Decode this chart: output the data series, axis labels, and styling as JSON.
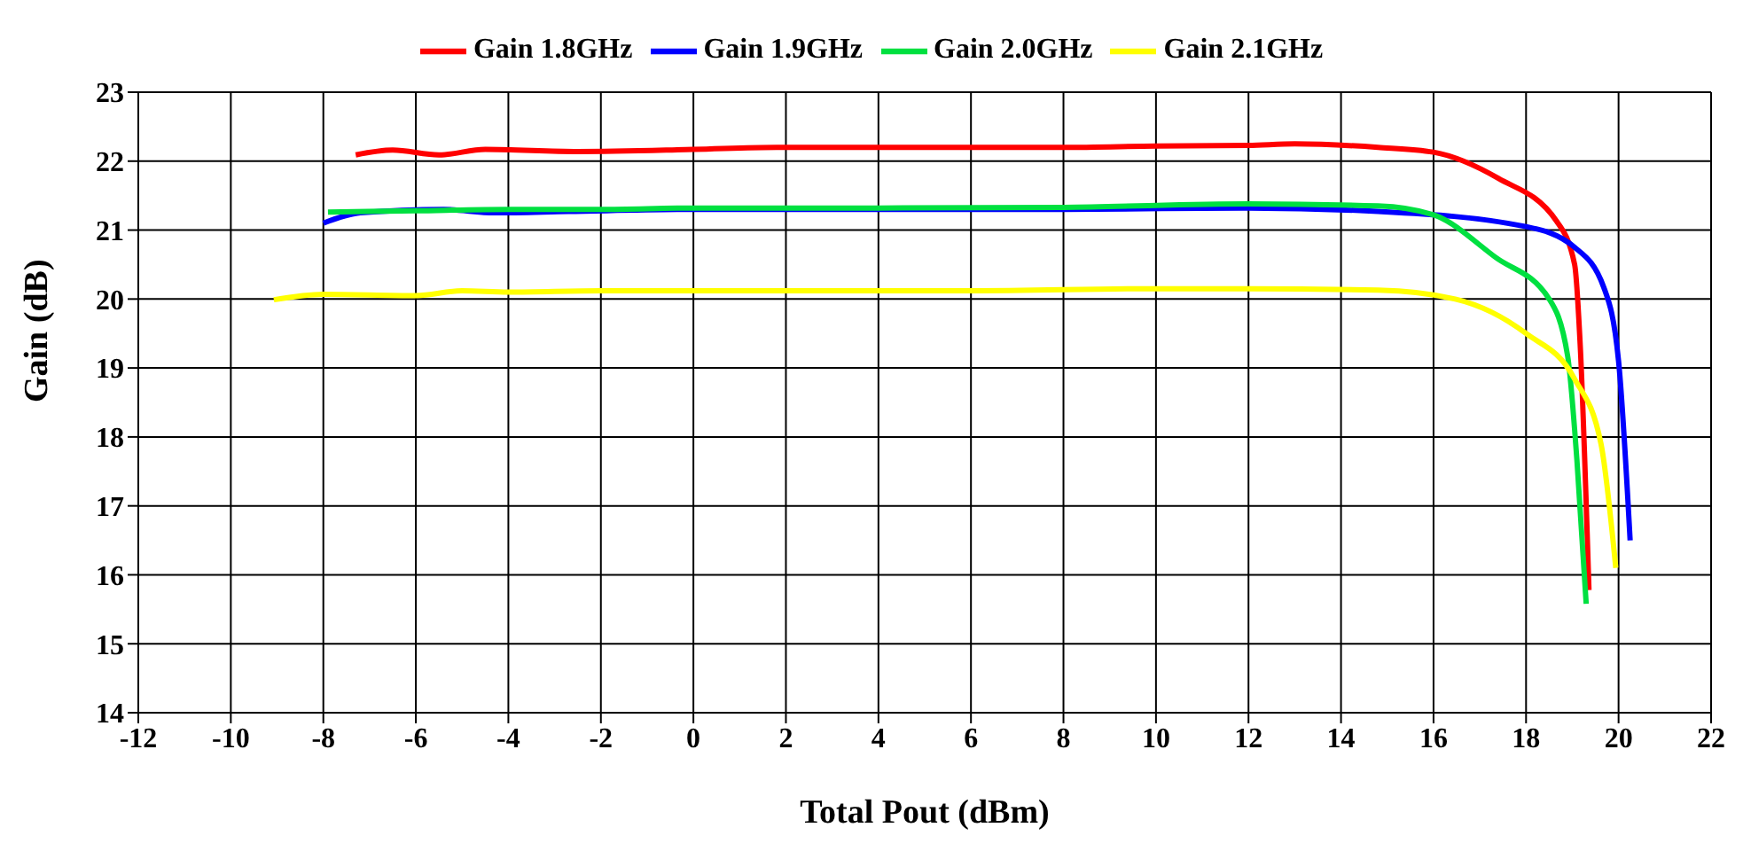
{
  "chart_data": {
    "type": "line",
    "xlabel": "Total Pout (dBm)",
    "ylabel": "Gain (dB)",
    "xlim": [
      -12,
      22
    ],
    "xticks": [
      -12,
      -10,
      -8,
      -6,
      -4,
      -2,
      0,
      2,
      4,
      6,
      8,
      10,
      12,
      14,
      16,
      18,
      20,
      22
    ],
    "ylim": [
      14,
      23
    ],
    "yticks": [
      14,
      15,
      16,
      17,
      18,
      19,
      20,
      21,
      22,
      23
    ],
    "grid": true,
    "legend": "top",
    "marker": "none",
    "line_style": "solid",
    "series": [
      {
        "name": "Gain 1.8GHz",
        "color": "#ff0000",
        "x": [
          -7.3,
          -6.5,
          -5.5,
          -4.5,
          -2.5,
          0,
          1.8,
          4,
          6,
          8,
          10,
          12,
          13,
          14.8,
          16,
          17.4,
          18.66,
          19.05,
          19.17,
          19.36
        ],
        "values": [
          22.09,
          22.16,
          22.09,
          22.17,
          22.14,
          22.17,
          22.2,
          22.2,
          22.2,
          22.2,
          22.22,
          22.23,
          22.25,
          22.2,
          22.13,
          21.75,
          21.13,
          20.5,
          19.34,
          15.78
        ]
      },
      {
        "name": "Gain 1.9GHz",
        "color": "#0000ff",
        "x": [
          -8,
          -7.2,
          -5.4,
          -4.3,
          -2.7,
          0,
          4,
          8,
          12,
          14.8,
          18,
          19.05,
          19.68,
          20,
          20.25
        ],
        "values": [
          21.1,
          21.25,
          21.3,
          21.25,
          21.27,
          21.3,
          21.3,
          21.3,
          21.32,
          21.27,
          21.05,
          20.75,
          20.17,
          19.1,
          16.5
        ]
      },
      {
        "name": "Gain 2.0GHz",
        "color": "#00e040",
        "x": [
          -7.9,
          -6,
          -4,
          -2,
          0,
          4,
          8,
          12,
          14.8,
          16,
          17.35,
          18.5,
          18.9,
          19.1,
          19.3
        ],
        "values": [
          21.26,
          21.28,
          21.3,
          21.3,
          21.32,
          21.32,
          21.33,
          21.38,
          21.35,
          21.22,
          20.6,
          20.0,
          19.17,
          17.66,
          15.58
        ]
      },
      {
        "name": "Gain 2.1GHz",
        "color": "#ffff00",
        "x": [
          -9.07,
          -8,
          -6,
          -5,
          -4,
          -2,
          2,
          6,
          10,
          12,
          14.8,
          16.47,
          18,
          19.05,
          19.62,
          19.94
        ],
        "values": [
          19.99,
          20.07,
          20.05,
          20.12,
          20.1,
          20.12,
          20.12,
          20.12,
          20.15,
          20.15,
          20.13,
          20.0,
          19.5,
          18.84,
          17.9,
          16.1
        ]
      }
    ]
  }
}
